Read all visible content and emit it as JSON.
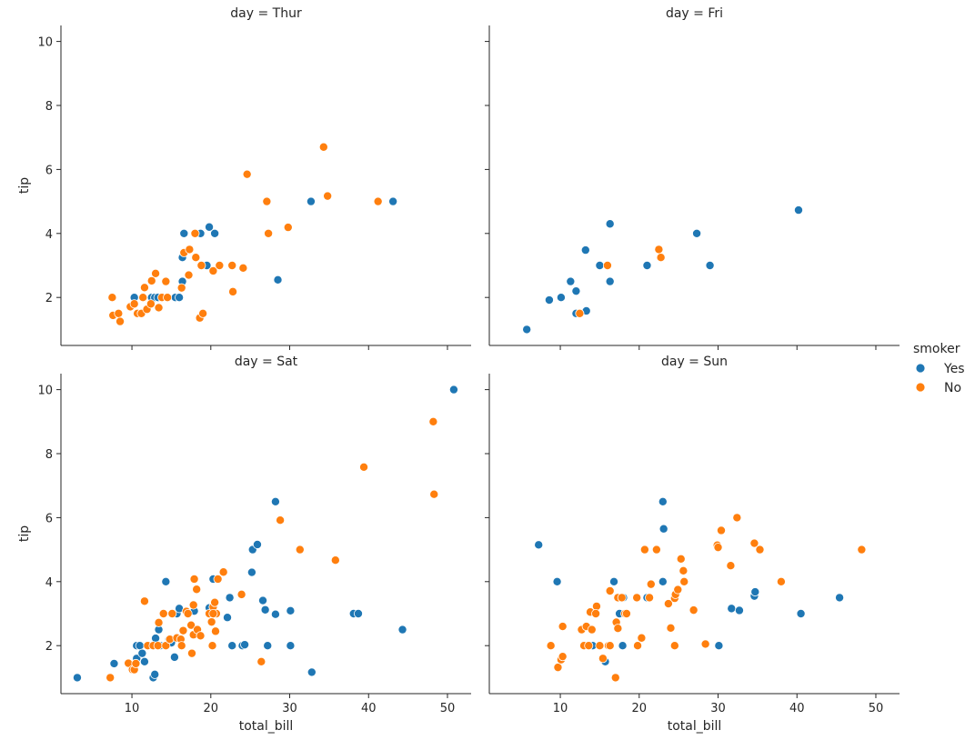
{
  "legend": {
    "title": "smoker",
    "items": [
      {
        "label": "Yes",
        "color": "#1f77b4"
      },
      {
        "label": "No",
        "color": "#ff7f0e"
      }
    ],
    "placement": "right"
  },
  "chart_data": [
    {
      "type": "scatter",
      "title": "day = Thur",
      "xlabel": "",
      "ylabel": "tip",
      "xlim": [
        1,
        53
      ],
      "ylim": [
        0.5,
        10.5
      ],
      "xticks": [
        10,
        20,
        30,
        40,
        50
      ],
      "yticks": [
        2,
        4,
        6,
        8,
        10
      ],
      "show_x_ticklabels": false,
      "show_y_ticklabels": true,
      "grid": false,
      "series": [
        {
          "name": "Yes",
          "color": "#1f77b4",
          "points": [
            [
              10.3,
              2.0
            ],
            [
              12.5,
              2.0
            ],
            [
              12.9,
              2.0
            ],
            [
              13.3,
              2.0
            ],
            [
              15.5,
              2.0
            ],
            [
              16.0,
              2.0
            ],
            [
              16.4,
              2.5
            ],
            [
              16.4,
              3.25
            ],
            [
              16.6,
              4.0
            ],
            [
              18.7,
              4.0
            ],
            [
              19.5,
              3.0
            ],
            [
              19.8,
              4.2
            ],
            [
              20.5,
              4.0
            ],
            [
              28.5,
              2.55
            ],
            [
              32.7,
              5.0
            ],
            [
              43.1,
              5.0
            ]
          ]
        },
        {
          "name": "No",
          "color": "#ff7f0e",
          "points": [
            [
              7.5,
              2.0
            ],
            [
              7.6,
              1.44
            ],
            [
              8.3,
              1.5
            ],
            [
              8.5,
              1.25
            ],
            [
              9.8,
              1.71
            ],
            [
              10.3,
              1.8
            ],
            [
              10.7,
              1.5
            ],
            [
              11.2,
              1.5
            ],
            [
              11.4,
              2.0
            ],
            [
              11.6,
              2.31
            ],
            [
              11.9,
              1.63
            ],
            [
              12.4,
              1.8
            ],
            [
              12.5,
              2.52
            ],
            [
              13.0,
              2.75
            ],
            [
              13.4,
              1.68
            ],
            [
              13.8,
              2.0
            ],
            [
              14.3,
              2.5
            ],
            [
              14.5,
              2.0
            ],
            [
              16.3,
              2.3
            ],
            [
              16.6,
              3.4
            ],
            [
              17.3,
              3.5
            ],
            [
              17.2,
              2.7
            ],
            [
              18.0,
              4.0
            ],
            [
              18.1,
              3.25
            ],
            [
              18.6,
              1.36
            ],
            [
              19.0,
              1.5
            ],
            [
              18.8,
              3.0
            ],
            [
              20.3,
              2.83
            ],
            [
              21.1,
              3.0
            ],
            [
              22.8,
              2.18
            ],
            [
              22.7,
              3.0
            ],
            [
              24.1,
              2.92
            ],
            [
              24.6,
              5.85
            ],
            [
              27.1,
              5.0
            ],
            [
              27.3,
              4.0
            ],
            [
              29.8,
              4.19
            ],
            [
              34.3,
              6.7
            ],
            [
              34.8,
              5.17
            ],
            [
              41.2,
              5.0
            ]
          ]
        }
      ]
    },
    {
      "type": "scatter",
      "title": "day = Fri",
      "xlabel": "",
      "ylabel": "",
      "xlim": [
        1,
        53
      ],
      "ylim": [
        0.5,
        10.5
      ],
      "xticks": [
        10,
        20,
        30,
        40,
        50
      ],
      "yticks": [
        2,
        4,
        6,
        8,
        10
      ],
      "show_x_ticklabels": false,
      "show_y_ticklabels": false,
      "grid": false,
      "series": [
        {
          "name": "Yes",
          "color": "#1f77b4",
          "points": [
            [
              5.75,
              1.0
            ],
            [
              8.6,
              1.92
            ],
            [
              10.1,
              2.0
            ],
            [
              11.3,
              2.5
            ],
            [
              12.0,
              1.5
            ],
            [
              12.0,
              2.2
            ],
            [
              13.2,
              3.48
            ],
            [
              13.3,
              1.58
            ],
            [
              15.0,
              3.0
            ],
            [
              16.3,
              2.5
            ],
            [
              16.3,
              4.3
            ],
            [
              21.0,
              3.0
            ],
            [
              27.3,
              4.0
            ],
            [
              28.97,
              3.0
            ],
            [
              40.2,
              4.73
            ]
          ]
        },
        {
          "name": "No",
          "color": "#ff7f0e",
          "points": [
            [
              12.46,
              1.5
            ],
            [
              15.98,
              3.0
            ],
            [
              22.49,
              3.5
            ],
            [
              22.75,
              3.25
            ]
          ]
        }
      ]
    },
    {
      "type": "scatter",
      "title": "day = Sat",
      "xlabel": "total_bill",
      "ylabel": "tip",
      "xlim": [
        1,
        53
      ],
      "ylim": [
        0.5,
        10.5
      ],
      "xticks": [
        10,
        20,
        30,
        40,
        50
      ],
      "yticks": [
        2,
        4,
        6,
        8,
        10
      ],
      "show_x_ticklabels": true,
      "show_y_ticklabels": true,
      "grid": false,
      "series": [
        {
          "name": "Yes",
          "color": "#1f77b4",
          "points": [
            [
              3.07,
              1.0
            ],
            [
              7.74,
              1.44
            ],
            [
              10.6,
              1.6
            ],
            [
              10.6,
              2.0
            ],
            [
              11.0,
              2.0
            ],
            [
              11.3,
              1.76
            ],
            [
              11.6,
              1.5
            ],
            [
              12.7,
              1.0
            ],
            [
              12.9,
              1.1
            ],
            [
              13.0,
              2.23
            ],
            [
              13.4,
              2.5
            ],
            [
              13.6,
              2.0
            ],
            [
              14.3,
              4.0
            ],
            [
              14.7,
              2.2
            ],
            [
              15.0,
              2.09
            ],
            [
              15.4,
              1.64
            ],
            [
              15.7,
              3.0
            ],
            [
              16.0,
              3.16
            ],
            [
              17.9,
              3.08
            ],
            [
              19.8,
              3.18
            ],
            [
              20.3,
              4.08
            ],
            [
              22.4,
              3.5
            ],
            [
              22.7,
              2.0
            ],
            [
              24.0,
              2.0
            ],
            [
              24.3,
              2.03
            ],
            [
              22.1,
              2.88
            ],
            [
              25.2,
              4.29
            ],
            [
              25.3,
              5.0
            ],
            [
              25.9,
              5.16
            ],
            [
              26.6,
              3.41
            ],
            [
              26.9,
              3.12
            ],
            [
              27.2,
              2.0
            ],
            [
              28.2,
              6.5
            ],
            [
              28.2,
              2.98
            ],
            [
              30.1,
              3.09
            ],
            [
              30.1,
              2.0
            ],
            [
              32.8,
              1.17
            ],
            [
              38.1,
              3.0
            ],
            [
              38.7,
              3.0
            ],
            [
              44.3,
              2.5
            ],
            [
              50.8,
              10.0
            ]
          ]
        },
        {
          "name": "No",
          "color": "#ff7f0e",
          "points": [
            [
              7.25,
              1.0
            ],
            [
              9.55,
              1.45
            ],
            [
              10.07,
              1.25
            ],
            [
              10.3,
              1.25
            ],
            [
              10.5,
              1.44
            ],
            [
              11.6,
              3.39
            ],
            [
              12.0,
              2.0
            ],
            [
              12.7,
              2.0
            ],
            [
              13.3,
              2.0
            ],
            [
              13.4,
              2.72
            ],
            [
              14.0,
              3.0
            ],
            [
              14.3,
              2.0
            ],
            [
              14.8,
              2.2
            ],
            [
              15.1,
              3.0
            ],
            [
              15.7,
              2.24
            ],
            [
              16.2,
              2.2
            ],
            [
              16.3,
              2.0
            ],
            [
              16.5,
              2.47
            ],
            [
              16.9,
              3.07
            ],
            [
              17.1,
              3.0
            ],
            [
              17.5,
              2.64
            ],
            [
              17.6,
              1.76
            ],
            [
              17.8,
              3.27
            ],
            [
              17.8,
              2.34
            ],
            [
              17.9,
              4.08
            ],
            [
              18.2,
              3.76
            ],
            [
              18.3,
              2.5
            ],
            [
              18.7,
              2.31
            ],
            [
              19.8,
              3.0
            ],
            [
              20.1,
              2.74
            ],
            [
              20.2,
              2.0
            ],
            [
              20.3,
              3.21
            ],
            [
              20.5,
              3.35
            ],
            [
              20.6,
              2.45
            ],
            [
              20.7,
              3.0
            ],
            [
              20.3,
              3.0
            ],
            [
              20.9,
              4.08
            ],
            [
              21.6,
              4.3
            ],
            [
              23.9,
              3.6
            ],
            [
              26.4,
              1.5
            ],
            [
              28.8,
              5.92
            ],
            [
              31.3,
              5.0
            ],
            [
              35.8,
              4.67
            ],
            [
              39.4,
              7.58
            ],
            [
              48.2,
              9.0
            ],
            [
              48.3,
              6.73
            ]
          ]
        }
      ]
    },
    {
      "type": "scatter",
      "title": "day = Sun",
      "xlabel": "total_bill",
      "ylabel": "",
      "xlim": [
        1,
        53
      ],
      "ylim": [
        0.5,
        10.5
      ],
      "xticks": [
        10,
        20,
        30,
        40,
        50
      ],
      "yticks": [
        2,
        4,
        6,
        8,
        10
      ],
      "show_x_ticklabels": true,
      "show_y_ticklabels": false,
      "grid": false,
      "series": [
        {
          "name": "Yes",
          "color": "#1f77b4",
          "points": [
            [
              7.25,
              5.15
            ],
            [
              9.6,
              4.0
            ],
            [
              14.1,
              2.0
            ],
            [
              15.4,
              1.57
            ],
            [
              15.7,
              1.5
            ],
            [
              16.8,
              4.0
            ],
            [
              17.5,
              3.0
            ],
            [
              17.9,
              2.0
            ],
            [
              18.0,
              3.5
            ],
            [
              21.0,
              3.5
            ],
            [
              23.0,
              4.0
            ],
            [
              23.1,
              5.65
            ],
            [
              23.0,
              6.5
            ],
            [
              30.1,
              2.0
            ],
            [
              31.7,
              3.16
            ],
            [
              32.7,
              3.1
            ],
            [
              34.6,
              3.55
            ],
            [
              34.7,
              3.68
            ],
            [
              40.5,
              3.0
            ],
            [
              45.4,
              3.5
            ]
          ]
        },
        {
          "name": "No",
          "color": "#ff7f0e",
          "points": [
            [
              8.8,
              2.0
            ],
            [
              9.7,
              1.32
            ],
            [
              10.1,
              1.56
            ],
            [
              10.3,
              1.66
            ],
            [
              10.3,
              2.6
            ],
            [
              12.7,
              2.5
            ],
            [
              13.0,
              2.0
            ],
            [
              13.3,
              2.6
            ],
            [
              13.6,
              2.0
            ],
            [
              13.8,
              3.05
            ],
            [
              14.0,
              2.5
            ],
            [
              14.6,
              3.23
            ],
            [
              14.5,
              3.0
            ],
            [
              15.0,
              2.0
            ],
            [
              15.4,
              1.6
            ],
            [
              16.1,
              2.0
            ],
            [
              16.3,
              3.71
            ],
            [
              16.3,
              2.0
            ],
            [
              17.0,
              1.0
            ],
            [
              17.1,
              2.73
            ],
            [
              17.3,
              3.5
            ],
            [
              17.3,
              2.54
            ],
            [
              17.8,
              3.5
            ],
            [
              18.2,
              3.0
            ],
            [
              18.4,
              3.0
            ],
            [
              19.7,
              3.5
            ],
            [
              19.8,
              2.0
            ],
            [
              20.3,
              2.24
            ],
            [
              20.7,
              5.0
            ],
            [
              21.3,
              3.5
            ],
            [
              21.5,
              3.92
            ],
            [
              22.2,
              5.0
            ],
            [
              23.7,
              3.31
            ],
            [
              24.0,
              2.55
            ],
            [
              24.5,
              3.48
            ],
            [
              24.5,
              2.0
            ],
            [
              24.6,
              3.6
            ],
            [
              24.9,
              3.75
            ],
            [
              25.3,
              4.71
            ],
            [
              25.6,
              4.34
            ],
            [
              25.7,
              4.0
            ],
            [
              26.9,
              3.11
            ],
            [
              28.4,
              2.05
            ],
            [
              29.9,
              5.14
            ],
            [
              30.0,
              5.07
            ],
            [
              30.4,
              5.6
            ],
            [
              31.6,
              4.5
            ],
            [
              32.4,
              6.0
            ],
            [
              34.6,
              5.2
            ],
            [
              35.3,
              5.0
            ],
            [
              38.0,
              4.0
            ],
            [
              48.2,
              5.0
            ]
          ]
        }
      ]
    }
  ]
}
